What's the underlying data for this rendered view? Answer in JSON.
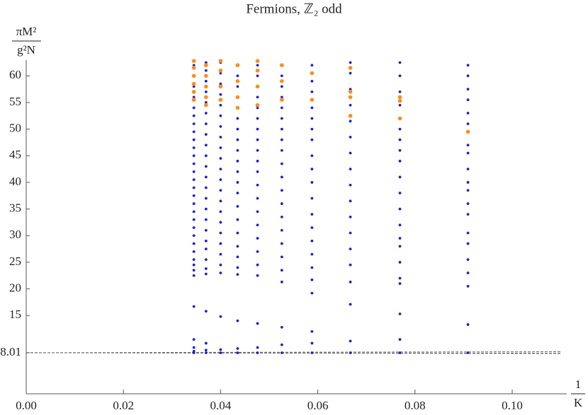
{
  "chart_data": {
    "type": "scatter",
    "title": "Fermions, ℤ₂ odd",
    "ylabel_numerator": "πM²",
    "ylabel_denominator": "g²N",
    "xlabel_numerator": "1",
    "xlabel_denominator": "K",
    "xlim": [
      0,
      0.11
    ],
    "ylim": [
      0.3,
      63
    ],
    "xticks": [
      {
        "value": 0,
        "label": "0.00"
      },
      0.02,
      0.04,
      0.06,
      0.08,
      {
        "value": 0.1,
        "label": "0.10"
      }
    ],
    "yticks": [
      8.01,
      15,
      20,
      25,
      30,
      35,
      40,
      45,
      50,
      55,
      60
    ],
    "series": [
      {
        "color": "#1f1fd6",
        "x": 0.0345,
        "values": [
          8.0,
          8.3,
          9.0,
          10.5,
          16.7,
          22.5,
          23.5,
          24.5,
          25.5,
          27,
          28.5,
          30,
          31.5,
          33,
          34.5,
          36,
          37.5,
          39,
          40.5,
          42,
          43.5,
          45,
          46.5,
          48,
          49.5,
          51,
          52.5,
          54,
          56,
          58,
          60,
          62
        ]
      },
      {
        "color": "#1f1fd6",
        "x": 0.037,
        "values": [
          8.0,
          8.5,
          9.8,
          15.8,
          22.8,
          23.8,
          25.5,
          27.5,
          29,
          31,
          33,
          35,
          37,
          39,
          41,
          43,
          45,
          47,
          49,
          51,
          53,
          55,
          57,
          59,
          61,
          62.5
        ]
      },
      {
        "color": "#1f1fd6",
        "x": 0.04,
        "values": [
          8.0,
          8.6,
          14.8,
          23,
          24.5,
          26.5,
          28.5,
          30.5,
          32.5,
          34.5,
          36.5,
          38.5,
          40.5,
          42.5,
          44.5,
          46.5,
          48.5,
          50.5,
          52.5,
          54.5,
          56.5,
          58.5,
          60.5,
          62.5
        ]
      },
      {
        "color": "#1f1fd6",
        "x": 0.0435,
        "values": [
          8.0,
          8.8,
          14,
          22.7,
          24,
          26,
          28,
          30.5,
          33,
          35.5,
          38,
          40,
          42,
          44,
          46,
          48,
          50,
          52,
          54,
          56,
          58,
          60,
          62
        ]
      },
      {
        "color": "#1f1fd6",
        "x": 0.0476,
        "values": [
          8.0,
          9.0,
          13.5,
          22.5,
          24.5,
          27,
          29.5,
          32,
          34.5,
          37,
          39.5,
          42,
          44,
          46,
          48,
          50,
          52,
          54,
          56,
          58,
          60,
          62
        ]
      },
      {
        "color": "#1f1fd6",
        "x": 0.0526,
        "values": [
          8.0,
          9.5,
          12.8,
          21.3,
          23.5,
          26,
          28.5,
          31,
          33.5,
          36,
          38.5,
          41,
          43.5,
          46,
          48,
          50,
          52,
          54,
          56,
          58,
          60,
          62
        ]
      },
      {
        "color": "#1f1fd6",
        "x": 0.0588,
        "values": [
          8.0,
          9.8,
          12.0,
          19.2,
          21.7,
          24,
          26.5,
          29,
          31.5,
          34,
          37,
          40,
          42.5,
          45,
          48,
          50,
          52,
          54,
          57,
          59,
          62
        ]
      },
      {
        "color": "#1f1fd6",
        "x": 0.0667,
        "values": [
          8.0,
          10.2,
          17.1,
          21.3,
          24.5,
          27.5,
          30.5,
          33.5,
          36.5,
          39.5,
          42.5,
          45.5,
          48.5,
          51.5,
          54.5,
          57.5,
          60.5,
          62.5
        ]
      },
      {
        "color": "#1f1fd6",
        "x": 0.0769,
        "values": [
          8.0,
          10.5,
          15.3,
          21,
          22,
          25,
          28,
          29.5,
          32,
          35,
          38,
          41,
          44,
          46,
          48,
          50,
          52,
          54.5,
          57,
          60,
          62.5
        ]
      },
      {
        "color": "#1f1fd6",
        "x": 0.0909,
        "values": [
          8.0,
          13.3,
          20.5,
          23,
          25.5,
          28.5,
          30.5,
          34,
          36,
          38.5,
          40,
          42.5,
          45.5,
          47,
          49.5,
          51,
          53,
          55.5,
          57.5,
          60,
          62
        ]
      },
      {
        "color": "#ff8c1a",
        "x": 0.0345,
        "values": [
          55.5,
          57,
          58.5,
          60,
          61.5,
          62.8
        ]
      },
      {
        "color": "#ff8c1a",
        "x": 0.037,
        "values": [
          54.5,
          56,
          58,
          60,
          62
        ]
      },
      {
        "color": "#ff8c1a",
        "x": 0.04,
        "values": [
          55.5,
          58,
          61,
          62.8
        ]
      },
      {
        "color": "#ff8c1a",
        "x": 0.0435,
        "values": [
          54,
          56,
          59,
          62
        ]
      },
      {
        "color": "#ff8c1a",
        "x": 0.0476,
        "values": [
          54.5,
          58,
          61,
          62.8
        ]
      },
      {
        "color": "#ff8c1a",
        "x": 0.0526,
        "values": [
          55.5,
          59,
          62
        ]
      },
      {
        "color": "#ff8c1a",
        "x": 0.0588,
        "values": [
          55.5,
          60.5
        ]
      },
      {
        "color": "#ff8c1a",
        "x": 0.0667,
        "values": [
          52.5,
          56,
          57,
          61.5
        ]
      },
      {
        "color": "#ff8c1a",
        "x": 0.0769,
        "values": [
          52,
          55.3,
          56
        ]
      },
      {
        "color": "#ff8c1a",
        "x": 0.0909,
        "values": [
          49.5
        ]
      }
    ],
    "lines": [
      {
        "color": "#666666",
        "dashed": true,
        "x": [
          0,
          0.11
        ],
        "values": [
          8.01,
          8.2
        ]
      },
      {
        "color": "#666666",
        "dashed": true,
        "x": [
          0,
          0.11
        ],
        "values": [
          8.01,
          7.92
        ]
      },
      {
        "color": "#666666",
        "dashed": true,
        "x": [
          0,
          0.11
        ],
        "values": [
          8.01,
          7.86
        ]
      }
    ]
  }
}
